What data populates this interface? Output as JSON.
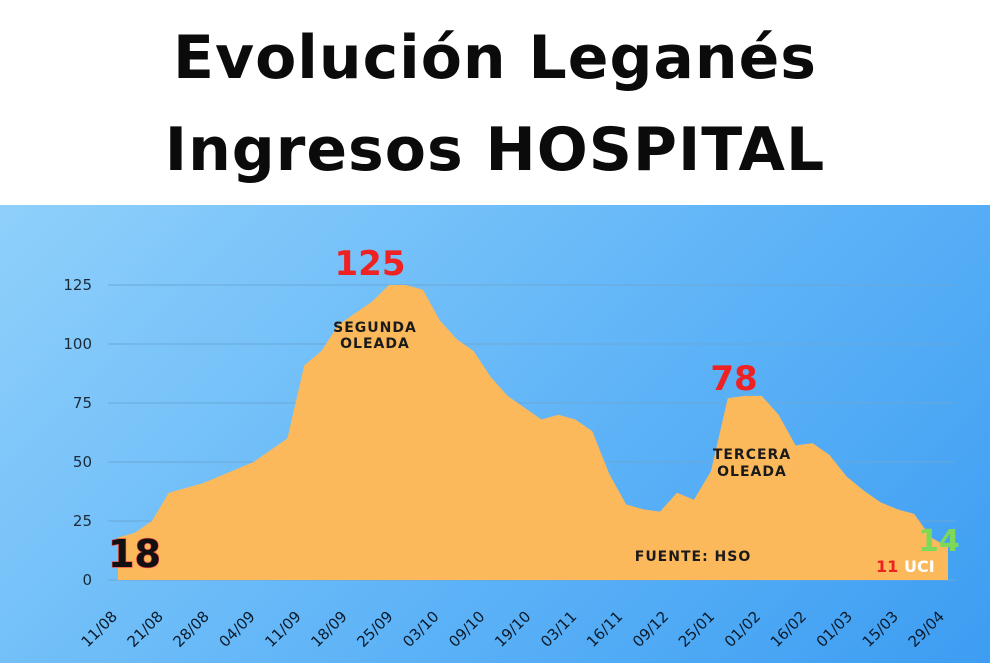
{
  "title": {
    "line1": "Evolución Leganés",
    "line2": "Ingresos HOSPITAL"
  },
  "colors": {
    "area_fill": "#fbb95c",
    "peak_label": "#ee2222",
    "end_label": "#7ed957",
    "background_start": "#8fd0fb",
    "background_end": "#3d9df2"
  },
  "chart_data": {
    "type": "area",
    "title": "Evolución Leganés Ingresos HOSPITAL",
    "xlabel": "",
    "ylabel": "",
    "ylim": [
      0,
      125
    ],
    "yticks": [
      0,
      25,
      50,
      75,
      100,
      125
    ],
    "xticks": [
      "11/08",
      "21/08",
      "28/08",
      "04/09",
      "11/09",
      "18/09",
      "25/09",
      "03/10",
      "09/10",
      "19/10",
      "03/11",
      "16/11",
      "09/12",
      "25/01",
      "01/02",
      "16/02",
      "01/03",
      "15/03",
      "29/04"
    ],
    "grid": true,
    "values": [
      18,
      20,
      25,
      37,
      39,
      41,
      44,
      47,
      50,
      55,
      60,
      91,
      97,
      108,
      113,
      118,
      125,
      125,
      123,
      110,
      102,
      97,
      86,
      78,
      73,
      68,
      70,
      68,
      63,
      45,
      32,
      30,
      29,
      37,
      34,
      46,
      77,
      78,
      78,
      70,
      57,
      58,
      53,
      44,
      38,
      33,
      30,
      28,
      18,
      14
    ],
    "annotations": {
      "start_value": "18",
      "peak_second": "125",
      "peak_third": "78",
      "second_wave": [
        "SEGUNDA",
        "OLEADA"
      ],
      "third_wave": [
        "TERCERA",
        "OLEADA"
      ],
      "source": "FUENTE: HSO",
      "end_value": "14",
      "uci_count": "11",
      "uci_label": "UCI"
    }
  }
}
